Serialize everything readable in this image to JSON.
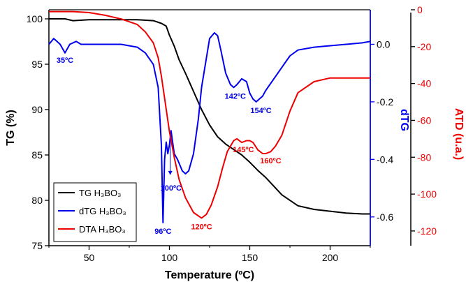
{
  "chart_data": {
    "type": "line",
    "xlabel": "Temperature (ºC)",
    "x_ticks": [
      "50",
      "100",
      "150",
      "200"
    ],
    "xlim": [
      25,
      225
    ],
    "colors": {
      "tg": "#000000",
      "dtg": "#0000ee",
      "dta": "#ee0000"
    },
    "axes": {
      "tg": {
        "label": "TG (%)",
        "range": [
          75,
          101
        ],
        "ticks": [
          "75",
          "80",
          "85",
          "90",
          "95",
          "100"
        ],
        "tick_values": [
          75,
          80,
          85,
          90,
          95,
          100
        ]
      },
      "dtg": {
        "label": "dTG",
        "range": [
          -0.7,
          0.12
        ],
        "ticks": [
          "-0.6",
          "-0.4",
          "-0.2",
          "0.0"
        ],
        "tick_values": [
          -0.6,
          -0.4,
          -0.2,
          0.0
        ]
      },
      "dta": {
        "label": "ATD (u.a.)",
        "range": [
          -128,
          0
        ],
        "ticks": [
          "-120",
          "-100",
          "-80",
          "-60",
          "-40",
          "-20",
          "0"
        ],
        "tick_values": [
          -120,
          -100,
          -80,
          -60,
          -40,
          -20,
          0
        ]
      }
    },
    "series": [
      {
        "name": "TG H₃BO₃",
        "axis": "tg",
        "color": "#000000",
        "x": [
          25,
          30,
          35,
          40,
          50,
          60,
          70,
          80,
          90,
          95,
          98,
          100,
          103,
          106,
          110,
          115,
          120,
          125,
          130,
          135,
          140,
          145,
          150,
          155,
          160,
          170,
          180,
          190,
          200,
          210,
          220,
          225
        ],
        "y": [
          100.0,
          100.0,
          100.0,
          99.8,
          99.9,
          99.9,
          99.9,
          99.9,
          99.8,
          99.5,
          99.2,
          98.2,
          97.0,
          95.5,
          94.0,
          92.0,
          90.0,
          88.3,
          87.0,
          86.2,
          85.6,
          85.0,
          84.2,
          83.3,
          82.5,
          80.6,
          79.4,
          79.0,
          78.8,
          78.6,
          78.5,
          78.5
        ]
      },
      {
        "name": "dTG H₃BO₃",
        "axis": "dtg",
        "color": "#0000ee",
        "x": [
          25,
          28,
          30,
          32,
          35,
          38,
          42,
          45,
          50,
          60,
          70,
          80,
          85,
          90,
          93,
          95,
          96,
          97,
          98,
          99,
          100,
          101,
          102,
          103,
          105,
          108,
          110,
          112,
          115,
          118,
          120,
          125,
          128,
          130,
          132,
          135,
          138,
          140,
          142,
          145,
          148,
          150,
          152,
          154,
          156,
          158,
          160,
          165,
          170,
          175,
          180,
          190,
          200,
          210,
          220,
          225
        ],
        "y": [
          0.0,
          0.02,
          0.01,
          0.0,
          -0.03,
          0.0,
          0.01,
          0.0,
          -0.0,
          0.0,
          0.0,
          -0.01,
          -0.03,
          -0.07,
          -0.15,
          -0.35,
          -0.62,
          -0.4,
          -0.34,
          -0.38,
          -0.35,
          -0.3,
          -0.34,
          -0.38,
          -0.4,
          -0.44,
          -0.45,
          -0.44,
          -0.38,
          -0.26,
          -0.15,
          0.02,
          0.04,
          0.03,
          -0.02,
          -0.1,
          -0.14,
          -0.15,
          -0.14,
          -0.12,
          -0.13,
          -0.17,
          -0.19,
          -0.2,
          -0.19,
          -0.18,
          -0.16,
          -0.12,
          -0.08,
          -0.04,
          -0.02,
          -0.01,
          -0.005,
          0.0,
          0.005,
          0.01
        ]
      },
      {
        "name": "DTA H₃BO₃",
        "axis": "dta",
        "color": "#ee0000",
        "x": [
          25,
          30,
          40,
          50,
          60,
          70,
          80,
          85,
          90,
          93,
          95,
          98,
          100,
          103,
          106,
          110,
          115,
          120,
          123,
          126,
          130,
          133,
          136,
          140,
          142,
          145,
          148,
          150,
          152,
          155,
          158,
          160,
          163,
          166,
          170,
          175,
          180,
          190,
          200,
          210,
          220,
          225
        ],
        "y": [
          -1,
          -1,
          -1,
          -1.5,
          -3,
          -5,
          -8,
          -12,
          -18,
          -26,
          -36,
          -54,
          -66,
          -80,
          -92,
          -102,
          -110,
          -113,
          -111,
          -106,
          -96,
          -86,
          -77,
          -71,
          -70,
          -72,
          -71,
          -71,
          -72,
          -76,
          -78,
          -78,
          -77,
          -74,
          -68,
          -55,
          -45,
          -39,
          -37,
          -37,
          -37,
          -37
        ]
      }
    ],
    "legend": {
      "position": "bottom-left",
      "entries": [
        "TG H₃BO₃",
        "dTG H₃BO₃",
        "DTA H₃BO₃"
      ]
    },
    "annotations": [
      {
        "text": "35ºC",
        "color": "#0000ee",
        "x": 35,
        "axis": "dtg",
        "y": -0.03,
        "dy": 14
      },
      {
        "text": "96ºC",
        "color": "#0000ee",
        "x": 96,
        "axis": "dtg",
        "y": -0.62,
        "dy": 16
      },
      {
        "text": "100ºC",
        "color": "#0000ee",
        "x": 101,
        "axis": "dtg",
        "y": -0.47,
        "dy": 16
      },
      {
        "text": "120ºC",
        "color": "#ee0000",
        "x": 120,
        "axis": "dta",
        "y": -113,
        "dy": 16
      },
      {
        "text": "142ºC",
        "color": "#0000ee",
        "x": 141,
        "axis": "dtg",
        "y": -0.15,
        "dy": 16
      },
      {
        "text": "154ºC",
        "color": "#0000ee",
        "x": 157,
        "axis": "dtg",
        "y": -0.2,
        "dy": 16
      },
      {
        "text": "145ºC",
        "color": "#ee0000",
        "x": 146,
        "axis": "dta",
        "y": -72,
        "dy": 14
      },
      {
        "text": "160ºC",
        "color": "#ee0000",
        "x": 163,
        "axis": "dta",
        "y": -78,
        "dy": 14
      }
    ]
  }
}
